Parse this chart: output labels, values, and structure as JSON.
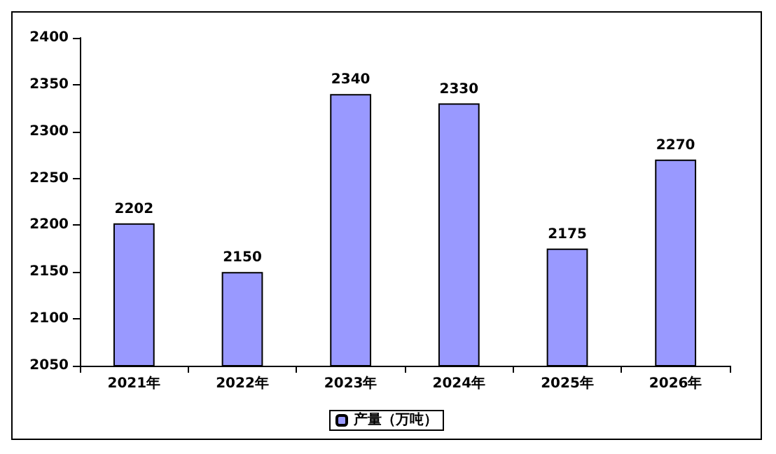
{
  "chart_data": {
    "type": "bar",
    "categories": [
      "2021年",
      "2022年",
      "2023年",
      "2024年",
      "2025年",
      "2026年"
    ],
    "series": [
      {
        "name": "产量（万吨）",
        "color": "#9999ff",
        "values": [
          2202,
          2150,
          2340,
          2330,
          2175,
          2270
        ]
      }
    ],
    "ylim": [
      2050,
      2400
    ],
    "yticks": [
      2050,
      2100,
      2150,
      2200,
      2250,
      2300,
      2350,
      2400
    ],
    "data_labels": true,
    "grid": false,
    "legend": "bottom"
  }
}
